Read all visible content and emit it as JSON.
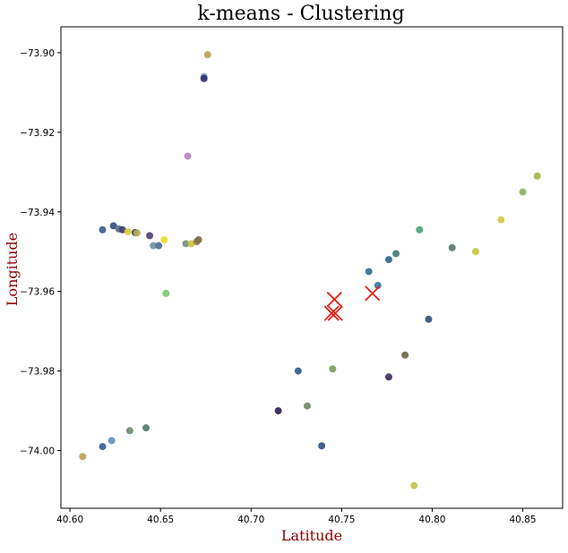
{
  "chart_data": {
    "type": "scatter",
    "title": "k-means - Clustering",
    "xlabel": "Latitude",
    "ylabel": "Longitude",
    "xlim": [
      40.595,
      40.872
    ],
    "ylim": [
      -74.0145,
      -73.8935
    ],
    "xticks": [
      "40.60",
      "40.65",
      "40.70",
      "40.75",
      "40.80",
      "40.85"
    ],
    "xtick_values": [
      40.6,
      40.65,
      40.7,
      40.75,
      40.8,
      40.85
    ],
    "yticks": [
      "−73.90",
      "−73.92",
      "−73.94",
      "−73.96",
      "−73.98",
      "−74.00"
    ],
    "ytick_values": [
      -73.9,
      -73.92,
      -73.94,
      -73.96,
      -73.98,
      -74.0
    ],
    "grid": false,
    "points": [
      {
        "x": 40.676,
        "y": -73.9005,
        "color": "#b8a255"
      },
      {
        "x": 40.674,
        "y": -73.906,
        "color": "#7a9bc9"
      },
      {
        "x": 40.674,
        "y": -73.9065,
        "color": "#2b2f6e"
      },
      {
        "x": 40.665,
        "y": -73.926,
        "color": "#b284c2"
      },
      {
        "x": 40.618,
        "y": -73.9445,
        "color": "#3a5a8a"
      },
      {
        "x": 40.624,
        "y": -73.9435,
        "color": "#2f4d7f"
      },
      {
        "x": 40.627,
        "y": -73.9443,
        "color": "#5d6e85"
      },
      {
        "x": 40.629,
        "y": -73.9445,
        "color": "#3d3f6e"
      },
      {
        "x": 40.632,
        "y": -73.945,
        "color": "#d6cc3c"
      },
      {
        "x": 40.636,
        "y": -73.9452,
        "color": "#33426b"
      },
      {
        "x": 40.637,
        "y": -73.9453,
        "color": "#b8b04a"
      },
      {
        "x": 40.644,
        "y": -73.946,
        "color": "#4e3d73"
      },
      {
        "x": 40.646,
        "y": -73.9485,
        "color": "#6f8fa4"
      },
      {
        "x": 40.649,
        "y": -73.9485,
        "color": "#4a6e8c"
      },
      {
        "x": 40.652,
        "y": -73.947,
        "color": "#e6dd2e"
      },
      {
        "x": 40.664,
        "y": -73.948,
        "color": "#6d917b"
      },
      {
        "x": 40.667,
        "y": -73.948,
        "color": "#cfc03a"
      },
      {
        "x": 40.67,
        "y": -73.9475,
        "color": "#8b7a52"
      },
      {
        "x": 40.671,
        "y": -73.947,
        "color": "#7c6e4a"
      },
      {
        "x": 40.653,
        "y": -73.9605,
        "color": "#7ac96a"
      },
      {
        "x": 40.607,
        "y": -74.0015,
        "color": "#b8a04a"
      },
      {
        "x": 40.618,
        "y": -73.999,
        "color": "#3a5a94"
      },
      {
        "x": 40.623,
        "y": -73.9975,
        "color": "#5f92b8"
      },
      {
        "x": 40.633,
        "y": -73.995,
        "color": "#6a8a70"
      },
      {
        "x": 40.642,
        "y": -73.9943,
        "color": "#4d7a68"
      },
      {
        "x": 40.715,
        "y": -73.99,
        "color": "#2e1f52"
      },
      {
        "x": 40.726,
        "y": -73.98,
        "color": "#2e5b8a"
      },
      {
        "x": 40.731,
        "y": -73.9888,
        "color": "#6f8a62"
      },
      {
        "x": 40.739,
        "y": -73.9988,
        "color": "#2d4f7d"
      },
      {
        "x": 40.745,
        "y": -73.9795,
        "color": "#7a9a5a"
      },
      {
        "x": 40.765,
        "y": -73.955,
        "color": "#3d6a8a"
      },
      {
        "x": 40.77,
        "y": -73.9585,
        "color": "#3576a0"
      },
      {
        "x": 40.776,
        "y": -73.952,
        "color": "#2f6590"
      },
      {
        "x": 40.78,
        "y": -73.9505,
        "color": "#3f7a72"
      },
      {
        "x": 40.776,
        "y": -73.9815,
        "color": "#3d2a5e"
      },
      {
        "x": 40.785,
        "y": -73.976,
        "color": "#6d6048"
      },
      {
        "x": 40.79,
        "y": -74.0088,
        "color": "#c2c04e"
      },
      {
        "x": 40.793,
        "y": -73.9445,
        "color": "#47a07a"
      },
      {
        "x": 40.798,
        "y": -73.967,
        "color": "#2f4f7a"
      },
      {
        "x": 40.811,
        "y": -73.949,
        "color": "#5a7a6a"
      },
      {
        "x": 40.824,
        "y": -73.95,
        "color": "#c7c43a"
      },
      {
        "x": 40.838,
        "y": -73.942,
        "color": "#cfc83a"
      },
      {
        "x": 40.85,
        "y": -73.935,
        "color": "#8ab06a"
      },
      {
        "x": 40.858,
        "y": -73.931,
        "color": "#a8b048"
      }
    ],
    "centroids": [
      {
        "x": 40.746,
        "y": -73.962
      },
      {
        "x": 40.767,
        "y": -73.9605
      },
      {
        "x": 40.7445,
        "y": -73.9655
      },
      {
        "x": 40.7465,
        "y": -73.9655
      }
    ],
    "centroid_color": "#e8211b"
  }
}
